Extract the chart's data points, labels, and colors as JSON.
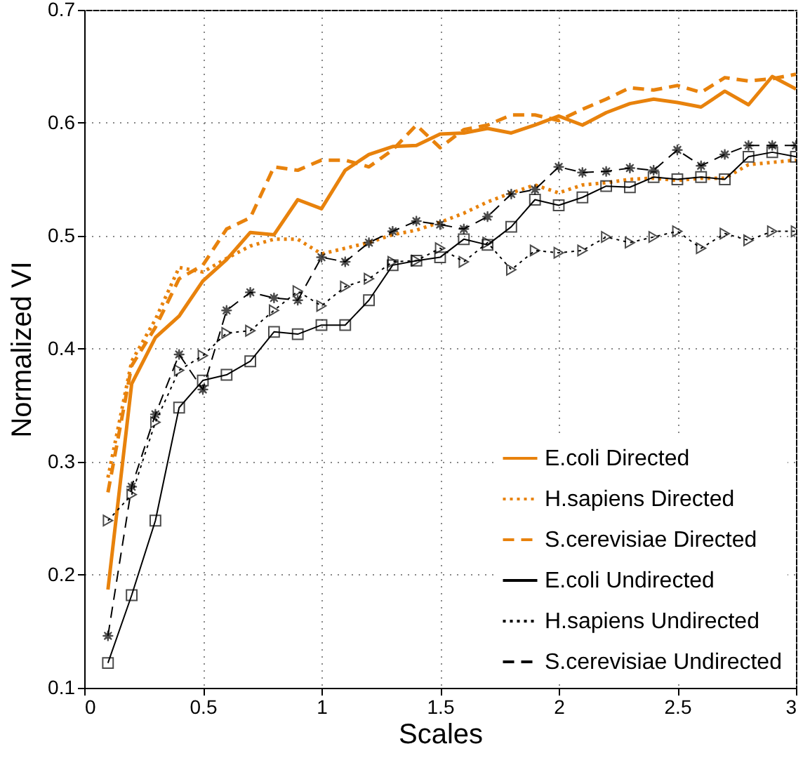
{
  "chart_data": {
    "type": "line",
    "xlabel": "Scales",
    "ylabel": "Normalized VI",
    "x": [
      0.1,
      0.2,
      0.3,
      0.4,
      0.5,
      0.6,
      0.7,
      0.8,
      0.9,
      1.0,
      1.1,
      1.2,
      1.3,
      1.4,
      1.5,
      1.6,
      1.7,
      1.8,
      1.9,
      2.0,
      2.1,
      2.2,
      2.3,
      2.4,
      2.5,
      2.6,
      2.7,
      2.8,
      2.9,
      3.0
    ],
    "series": [
      {
        "name": "E.coli Directed",
        "color": "#e8820c",
        "marker": "none",
        "line_style": "solid",
        "values": [
          0.187,
          0.369,
          0.41,
          0.429,
          0.46,
          0.479,
          0.503,
          0.501,
          0.532,
          0.524,
          0.558,
          0.572,
          0.579,
          0.58,
          0.59,
          0.591,
          0.595,
          0.591,
          0.598,
          0.606,
          0.598,
          0.609,
          0.617,
          0.621,
          0.618,
          0.614,
          0.628,
          0.616,
          0.641,
          0.63
        ]
      },
      {
        "name": "H.sapiens Directed",
        "color": "#e8820c",
        "marker": "none",
        "line_style": "dotted",
        "values": [
          0.286,
          0.389,
          0.426,
          0.472,
          0.468,
          0.48,
          0.491,
          0.497,
          0.497,
          0.484,
          0.489,
          0.494,
          0.501,
          0.505,
          0.512,
          0.52,
          0.53,
          0.538,
          0.545,
          0.538,
          0.545,
          0.547,
          0.55,
          0.551,
          0.549,
          0.551,
          0.551,
          0.563,
          0.565,
          0.567
        ]
      },
      {
        "name": "S.cerevisiae Directed",
        "color": "#e8820c",
        "marker": "none",
        "line_style": "dashed",
        "values": [
          0.273,
          0.385,
          0.419,
          0.462,
          0.474,
          0.506,
          0.516,
          0.561,
          0.558,
          0.567,
          0.567,
          0.561,
          0.576,
          0.598,
          0.578,
          0.594,
          0.598,
          0.607,
          0.607,
          0.602,
          0.612,
          0.621,
          0.631,
          0.629,
          0.633,
          0.627,
          0.64,
          0.637,
          0.639,
          0.643
        ]
      },
      {
        "name": "E.coli Undirected",
        "color": "#000000",
        "marker": "square",
        "line_style": "solid",
        "values": [
          0.122,
          0.182,
          0.248,
          0.348,
          0.372,
          0.377,
          0.389,
          0.415,
          0.413,
          0.421,
          0.421,
          0.443,
          0.474,
          0.478,
          0.481,
          0.497,
          0.492,
          0.508,
          0.532,
          0.527,
          0.534,
          0.544,
          0.543,
          0.552,
          0.55,
          0.552,
          0.55,
          0.57,
          0.574,
          0.57
        ]
      },
      {
        "name": "H.sapiens Undirected",
        "color": "#000000",
        "marker": "triangle",
        "line_style": "dotted",
        "values": [
          0.248,
          0.271,
          0.335,
          0.381,
          0.394,
          0.414,
          0.416,
          0.434,
          0.451,
          0.438,
          0.455,
          0.462,
          0.477,
          0.478,
          0.489,
          0.477,
          0.494,
          0.47,
          0.487,
          0.485,
          0.487,
          0.499,
          0.494,
          0.499,
          0.504,
          0.489,
          0.502,
          0.496,
          0.504,
          0.504
        ]
      },
      {
        "name": "S.cerevisiae Undirected",
        "color": "#000000",
        "marker": "star",
        "line_style": "dashed",
        "values": [
          0.146,
          0.278,
          0.342,
          0.395,
          0.364,
          0.434,
          0.45,
          0.445,
          0.443,
          0.481,
          0.477,
          0.494,
          0.504,
          0.513,
          0.51,
          0.506,
          0.517,
          0.537,
          0.541,
          0.561,
          0.556,
          0.557,
          0.56,
          0.558,
          0.576,
          0.562,
          0.572,
          0.58,
          0.58,
          0.58
        ]
      }
    ],
    "xlim": [
      0,
      3
    ],
    "xticks": [
      0,
      0.5,
      1,
      1.5,
      2,
      2.5,
      3
    ],
    "ylim": [
      0.1,
      0.7
    ],
    "yticks": [
      0.1,
      0.2,
      0.3,
      0.4,
      0.5,
      0.6,
      0.7
    ],
    "grid": true,
    "legend": "bottom right"
  }
}
